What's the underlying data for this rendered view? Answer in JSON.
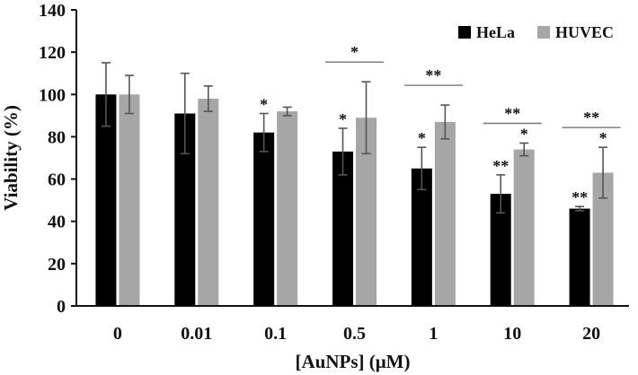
{
  "chart_data": {
    "type": "bar",
    "xlabel": "[AuNPs] (μM)",
    "ylabel": "Viability (%)",
    "ylim": [
      0,
      140
    ],
    "yticks": [
      0,
      20,
      40,
      60,
      80,
      100,
      120,
      140
    ],
    "categories": [
      "0",
      "0.01",
      "0.1",
      "0.5",
      "1",
      "10",
      "20"
    ],
    "series": [
      {
        "name": "HeLa",
        "color": "#000000",
        "values": [
          100,
          91,
          82,
          73,
          65,
          53,
          46
        ],
        "error": [
          15,
          19,
          9,
          11,
          10,
          9,
          1
        ],
        "labels": [
          "",
          "",
          "*",
          "*",
          "*",
          "**",
          "**"
        ]
      },
      {
        "name": "HUVEC",
        "color": "#a6a6a6",
        "values": [
          100,
          98,
          92,
          89,
          87,
          74,
          63
        ],
        "error": [
          9,
          6,
          2,
          17,
          8,
          3,
          12
        ],
        "labels": [
          "",
          "",
          "",
          "",
          "",
          "*",
          "*"
        ]
      }
    ],
    "comparisons": [
      {
        "category": "0.5",
        "label": "*"
      },
      {
        "category": "1",
        "label": "**"
      },
      {
        "category": "10",
        "label": "**"
      },
      {
        "category": "20",
        "label": "**"
      }
    ],
    "legend_position": "top-right",
    "grid": false
  }
}
